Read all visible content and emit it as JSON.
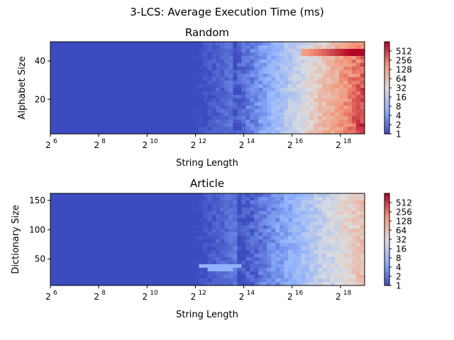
{
  "suptitle": "3-LCS: Average Execution Time (ms)",
  "chart_data": [
    {
      "type": "heatmap",
      "title": "Random",
      "xlabel": "String Length",
      "ylabel": "Alphabet Size",
      "xscale": "log2",
      "xlim": [
        64,
        524288
      ],
      "ylim": [
        2,
        50
      ],
      "x_ticks": [
        {
          "value": 64,
          "base": "2",
          "exp": "6"
        },
        {
          "value": 256,
          "base": "2",
          "exp": "8"
        },
        {
          "value": 1024,
          "base": "2",
          "exp": "10"
        },
        {
          "value": 4096,
          "base": "2",
          "exp": "12"
        },
        {
          "value": 16384,
          "base": "2",
          "exp": "14"
        },
        {
          "value": 65536,
          "base": "2",
          "exp": "16"
        },
        {
          "value": 262144,
          "base": "2",
          "exp": "18"
        }
      ],
      "y_ticks": [
        20,
        40
      ],
      "colormap": "coolwarm",
      "colorbar_ticks": [
        "1",
        "2",
        "4",
        "8",
        "16",
        "32",
        "64",
        "128",
        "256",
        "512"
      ],
      "colorbar_range": [
        1,
        1024
      ],
      "features": {
        "baseline_ms_until_exp": 13.5,
        "growth_per_doubling_ms": 1.5,
        "peak": {
          "y": 45,
          "x_from_exp": 16.3,
          "value_ms": 512
        }
      }
    },
    {
      "type": "heatmap",
      "title": "Article",
      "xlabel": "String Length",
      "ylabel": "Dictionary Size",
      "xscale": "log2",
      "xlim": [
        64,
        524288
      ],
      "ylim": [
        5,
        162
      ],
      "x_ticks": [
        {
          "value": 64,
          "base": "2",
          "exp": "6"
        },
        {
          "value": 256,
          "base": "2",
          "exp": "8"
        },
        {
          "value": 1024,
          "base": "2",
          "exp": "10"
        },
        {
          "value": 4096,
          "base": "2",
          "exp": "12"
        },
        {
          "value": 16384,
          "base": "2",
          "exp": "14"
        },
        {
          "value": 65536,
          "base": "2",
          "exp": "16"
        },
        {
          "value": 262144,
          "base": "2",
          "exp": "18"
        }
      ],
      "y_ticks": [
        50,
        100,
        150
      ],
      "colormap": "coolwarm",
      "colorbar_ticks": [
        "1",
        "2",
        "4",
        "8",
        "16",
        "32",
        "64",
        "128",
        "256",
        "512"
      ],
      "colorbar_range": [
        1,
        1024
      ],
      "features": {
        "baseline_ms_until_exp": 13.8,
        "growth_per_doubling_ms": 1.2,
        "blob": {
          "y": 37,
          "x_exp": 13.0,
          "value_ms": 6
        }
      }
    }
  ]
}
